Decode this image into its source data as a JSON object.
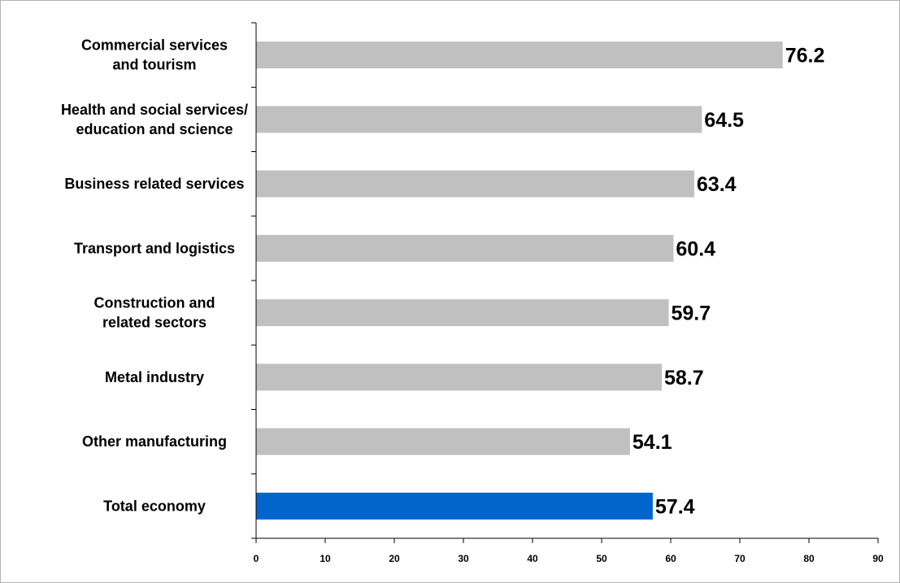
{
  "chart_data": {
    "type": "bar",
    "orientation": "horizontal",
    "categories": [
      [
        "Commercial services",
        "and tourism"
      ],
      [
        "Health and social services/",
        "education and science"
      ],
      [
        "Business related services"
      ],
      [
        "Transport and logistics"
      ],
      [
        "Construction and",
        "related sectors"
      ],
      [
        "Metal industry"
      ],
      [
        "Other manufacturing"
      ],
      [
        "Total economy"
      ]
    ],
    "values": [
      76.2,
      64.5,
      63.4,
      60.4,
      59.7,
      58.7,
      54.1,
      57.4
    ],
    "value_labels": [
      "76.2",
      "64.5",
      "63.4",
      "60.4",
      "59.7",
      "58.7",
      "54.1",
      "57.4"
    ],
    "bar_colors": [
      "#c0c0c0",
      "#c0c0c0",
      "#c0c0c0",
      "#c0c0c0",
      "#c0c0c0",
      "#c0c0c0",
      "#c0c0c0",
      "#0066cc"
    ],
    "xlim": [
      0,
      90
    ],
    "xticks": [
      0,
      10,
      20,
      30,
      40,
      50,
      60,
      70,
      80,
      90
    ],
    "title": "",
    "xlabel": "",
    "ylabel": "",
    "grid": false,
    "legend": "none"
  }
}
